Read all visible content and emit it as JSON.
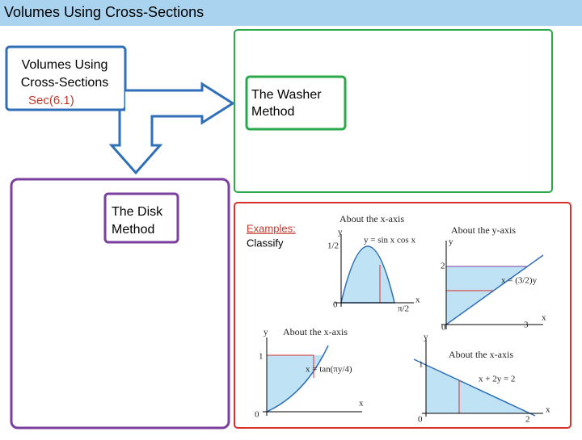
{
  "header": {
    "title": "Volumes Using Cross-Sections"
  },
  "intro_box": {
    "lines": [
      "Volumes Using",
      "Cross-Sections"
    ],
    "section": "Sec(6.1)"
  },
  "washer": {
    "lines": [
      "The Washer",
      "Method"
    ]
  },
  "disk": {
    "lines": [
      "The Disk",
      "Method"
    ]
  },
  "examples": {
    "heading": "Examples:",
    "text": "Classify"
  },
  "graphs": [
    {
      "title": "About the x-axis",
      "equation": "y = sin x cos x",
      "labels": [
        "y",
        "1/2",
        "0",
        "π/2",
        "x"
      ]
    },
    {
      "title": "About the y-axis",
      "equation": "x = (3/2)y",
      "labels": [
        "y",
        "2",
        "0",
        "3",
        "x"
      ]
    },
    {
      "title": "About the x-axis",
      "equation": "x = tan(πy/4)",
      "labels": [
        "y",
        "1",
        "0",
        "x"
      ]
    },
    {
      "title": "About the x-axis",
      "equation": "x + 2y = 2",
      "labels": [
        "y",
        "1",
        "0",
        "2",
        "x"
      ]
    }
  ]
}
